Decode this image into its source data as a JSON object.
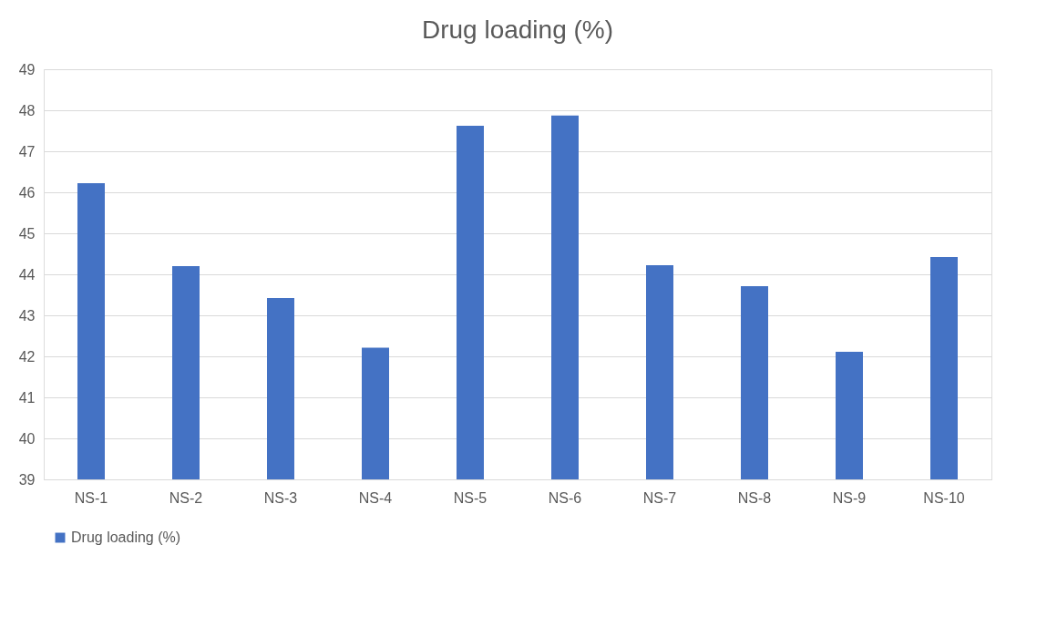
{
  "chart_data": {
    "type": "bar",
    "title": "Drug loading (%)",
    "categories": [
      "NS-1",
      "NS-2",
      "NS-3",
      "NS-4",
      "NS-5",
      "NS-6",
      "NS-7",
      "NS-8",
      "NS-9",
      "NS-10"
    ],
    "series": [
      {
        "name": "Drug loading (%)",
        "color": "#4472c4",
        "values": [
          46.22,
          44.2,
          43.42,
          42.21,
          47.62,
          47.87,
          44.22,
          43.71,
          42.11,
          44.42
        ]
      }
    ],
    "ylim": [
      39,
      49
    ],
    "yticks": [
      39,
      40,
      41,
      42,
      43,
      44,
      45,
      46,
      47,
      48,
      49
    ],
    "grid": "y",
    "legend": "bottom"
  }
}
